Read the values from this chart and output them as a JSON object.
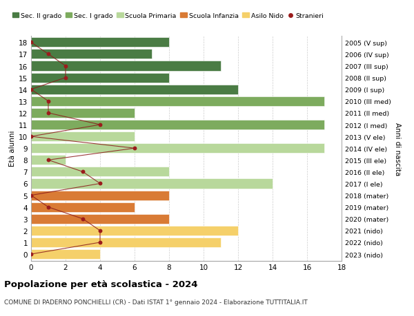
{
  "ages": [
    18,
    17,
    16,
    15,
    14,
    13,
    12,
    11,
    10,
    9,
    8,
    7,
    6,
    5,
    4,
    3,
    2,
    1,
    0
  ],
  "bar_values": [
    8,
    7,
    11,
    8,
    12,
    17,
    6,
    17,
    6,
    17,
    2,
    8,
    14,
    8,
    6,
    8,
    12,
    11,
    4
  ],
  "bar_colors": [
    "#4a7c44",
    "#4a7c44",
    "#4a7c44",
    "#4a7c44",
    "#4a7c44",
    "#7dab5e",
    "#7dab5e",
    "#7dab5e",
    "#b8d89b",
    "#b8d89b",
    "#b8d89b",
    "#b8d89b",
    "#b8d89b",
    "#d97b35",
    "#d97b35",
    "#d97b35",
    "#f5d06a",
    "#f5d06a",
    "#f5d06a"
  ],
  "right_labels": [
    "2005 (V sup)",
    "2006 (IV sup)",
    "2007 (III sup)",
    "2008 (II sup)",
    "2009 (I sup)",
    "2010 (III med)",
    "2011 (II med)",
    "2012 (I med)",
    "2013 (V ele)",
    "2014 (IV ele)",
    "2015 (III ele)",
    "2016 (II ele)",
    "2017 (I ele)",
    "2018 (mater)",
    "2019 (mater)",
    "2020 (mater)",
    "2021 (nido)",
    "2022 (nido)",
    "2023 (nido)"
  ],
  "stranieri_values": [
    0,
    1,
    2,
    2,
    0,
    1,
    1,
    4,
    0,
    6,
    1,
    3,
    4,
    0,
    1,
    3,
    4,
    4,
    0
  ],
  "legend_labels": [
    "Sec. II grado",
    "Sec. I grado",
    "Scuola Primaria",
    "Scuola Infanzia",
    "Asilo Nido",
    "Stranieri"
  ],
  "legend_colors": [
    "#4a7c44",
    "#7dab5e",
    "#b8d89b",
    "#d97b35",
    "#f5d06a",
    "#9b1c1c"
  ],
  "xlabel_left": "Età alunni",
  "xlabel_right": "Anni di nascita",
  "title": "Popolazione per età scolastica - 2024",
  "subtitle": "COMUNE DI PADERNO PONCHIELLI (CR) - Dati ISTAT 1° gennaio 2024 - Elaborazione TUTTITALIA.IT",
  "xlim": [
    0,
    18
  ],
  "bg_color": "#ffffff",
  "grid_color": "#cccccc"
}
